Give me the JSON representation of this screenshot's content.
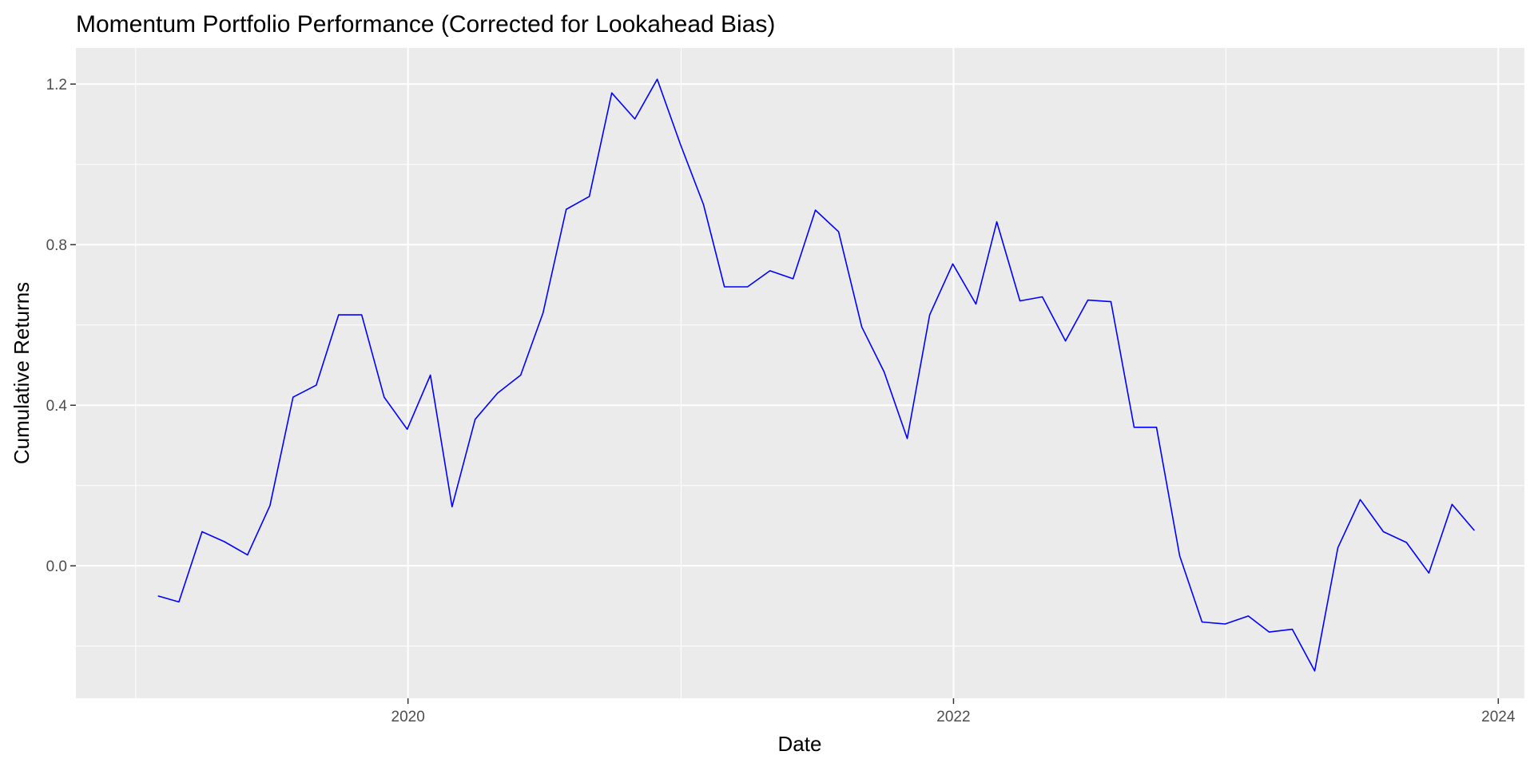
{
  "chart_data": {
    "type": "line",
    "title": "Momentum Portfolio Performance (Corrected for Lookahead Bias)",
    "xlabel": "Date",
    "ylabel": "Cumulative Returns",
    "x_tick_labels": [
      "2020",
      "2022",
      "2024"
    ],
    "y_tick_labels": [
      "0.0",
      "0.4",
      "0.8",
      "1.2"
    ],
    "y_ticks": [
      0.0,
      0.4,
      0.8,
      1.2
    ],
    "xlim": [
      "2018-10-13",
      "2024-02-05"
    ],
    "ylim": [
      -0.33,
      1.29
    ],
    "grid": true,
    "line_color": "#0000ff",
    "panel_color": "#ebebeb",
    "grid_color": "#ffffff",
    "series": [
      {
        "x": [
          "2019-01-31",
          "2019-02-28",
          "2019-03-31",
          "2019-04-30",
          "2019-05-31",
          "2019-06-30",
          "2019-07-31",
          "2019-08-31",
          "2019-09-30",
          "2019-10-31",
          "2019-11-30",
          "2019-12-31",
          "2020-01-31",
          "2020-02-29",
          "2020-03-31",
          "2020-04-30",
          "2020-05-31",
          "2020-06-30",
          "2020-07-31",
          "2020-08-31",
          "2020-09-30",
          "2020-10-31",
          "2020-11-30",
          "2020-12-31",
          "2021-01-31",
          "2021-02-28",
          "2021-03-31",
          "2021-04-30",
          "2021-05-31",
          "2021-06-30",
          "2021-07-31",
          "2021-08-31",
          "2021-09-30",
          "2021-10-31",
          "2021-11-30",
          "2021-12-31",
          "2022-01-31",
          "2022-02-28",
          "2022-03-31",
          "2022-04-30",
          "2022-05-31",
          "2022-06-30",
          "2022-07-31",
          "2022-08-31",
          "2022-09-30",
          "2022-10-31",
          "2022-11-30",
          "2022-12-31",
          "2023-01-31",
          "2023-02-28",
          "2023-03-31",
          "2023-04-30",
          "2023-05-31",
          "2023-06-30",
          "2023-07-31",
          "2023-08-31",
          "2023-09-30",
          "2023-10-31",
          "2023-11-30"
        ],
        "y": [
          -0.075,
          -0.09,
          0.085,
          0.06,
          0.027,
          0.15,
          0.42,
          0.45,
          0.625,
          0.625,
          0.42,
          0.34,
          0.475,
          0.147,
          0.365,
          0.43,
          0.475,
          0.63,
          0.888,
          0.92,
          1.178,
          1.113,
          1.212,
          1.05,
          0.9,
          0.695,
          0.695,
          0.735,
          0.715,
          0.886,
          0.832,
          0.595,
          0.483,
          0.317,
          0.625,
          0.752,
          0.652,
          0.857,
          0.66,
          0.67,
          0.56,
          0.662,
          0.658,
          0.345,
          0.345,
          0.025,
          -0.14,
          -0.145,
          -0.125,
          -0.165,
          -0.158,
          -0.262,
          0.045,
          0.165,
          0.085,
          0.058,
          -0.018,
          0.153,
          0.088
        ]
      }
    ]
  }
}
